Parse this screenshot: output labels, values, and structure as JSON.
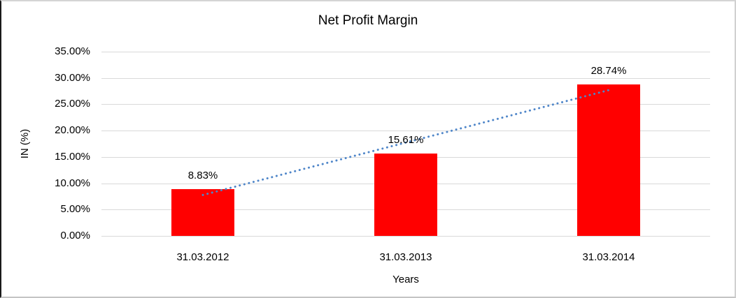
{
  "chart_data": {
    "type": "bar",
    "title": "Net Profit Margin",
    "xlabel": "Years",
    "ylabel": "IN (%)",
    "categories": [
      "31.03.2012",
      "31.03.2013",
      "31.03.2014"
    ],
    "values": [
      8.83,
      15.61,
      28.74
    ],
    "data_labels": [
      "8.83%",
      "15.61%",
      "28.74%"
    ],
    "ylim": [
      0,
      35
    ],
    "ytick_step": 5,
    "ytick_labels": [
      "0.00%",
      "5.00%",
      "10.00%",
      "15.00%",
      "20.00%",
      "25.00%",
      "30.00%",
      "35.00%"
    ],
    "grid": true,
    "legend_position": "none",
    "trendline": {
      "type": "linear",
      "style": "dotted"
    }
  },
  "colors": {
    "bar_fill": "#ff0000",
    "trendline": "#4f86c9",
    "gridline": "#d9d9d9",
    "text": "#000000",
    "background": "#ffffff"
  }
}
